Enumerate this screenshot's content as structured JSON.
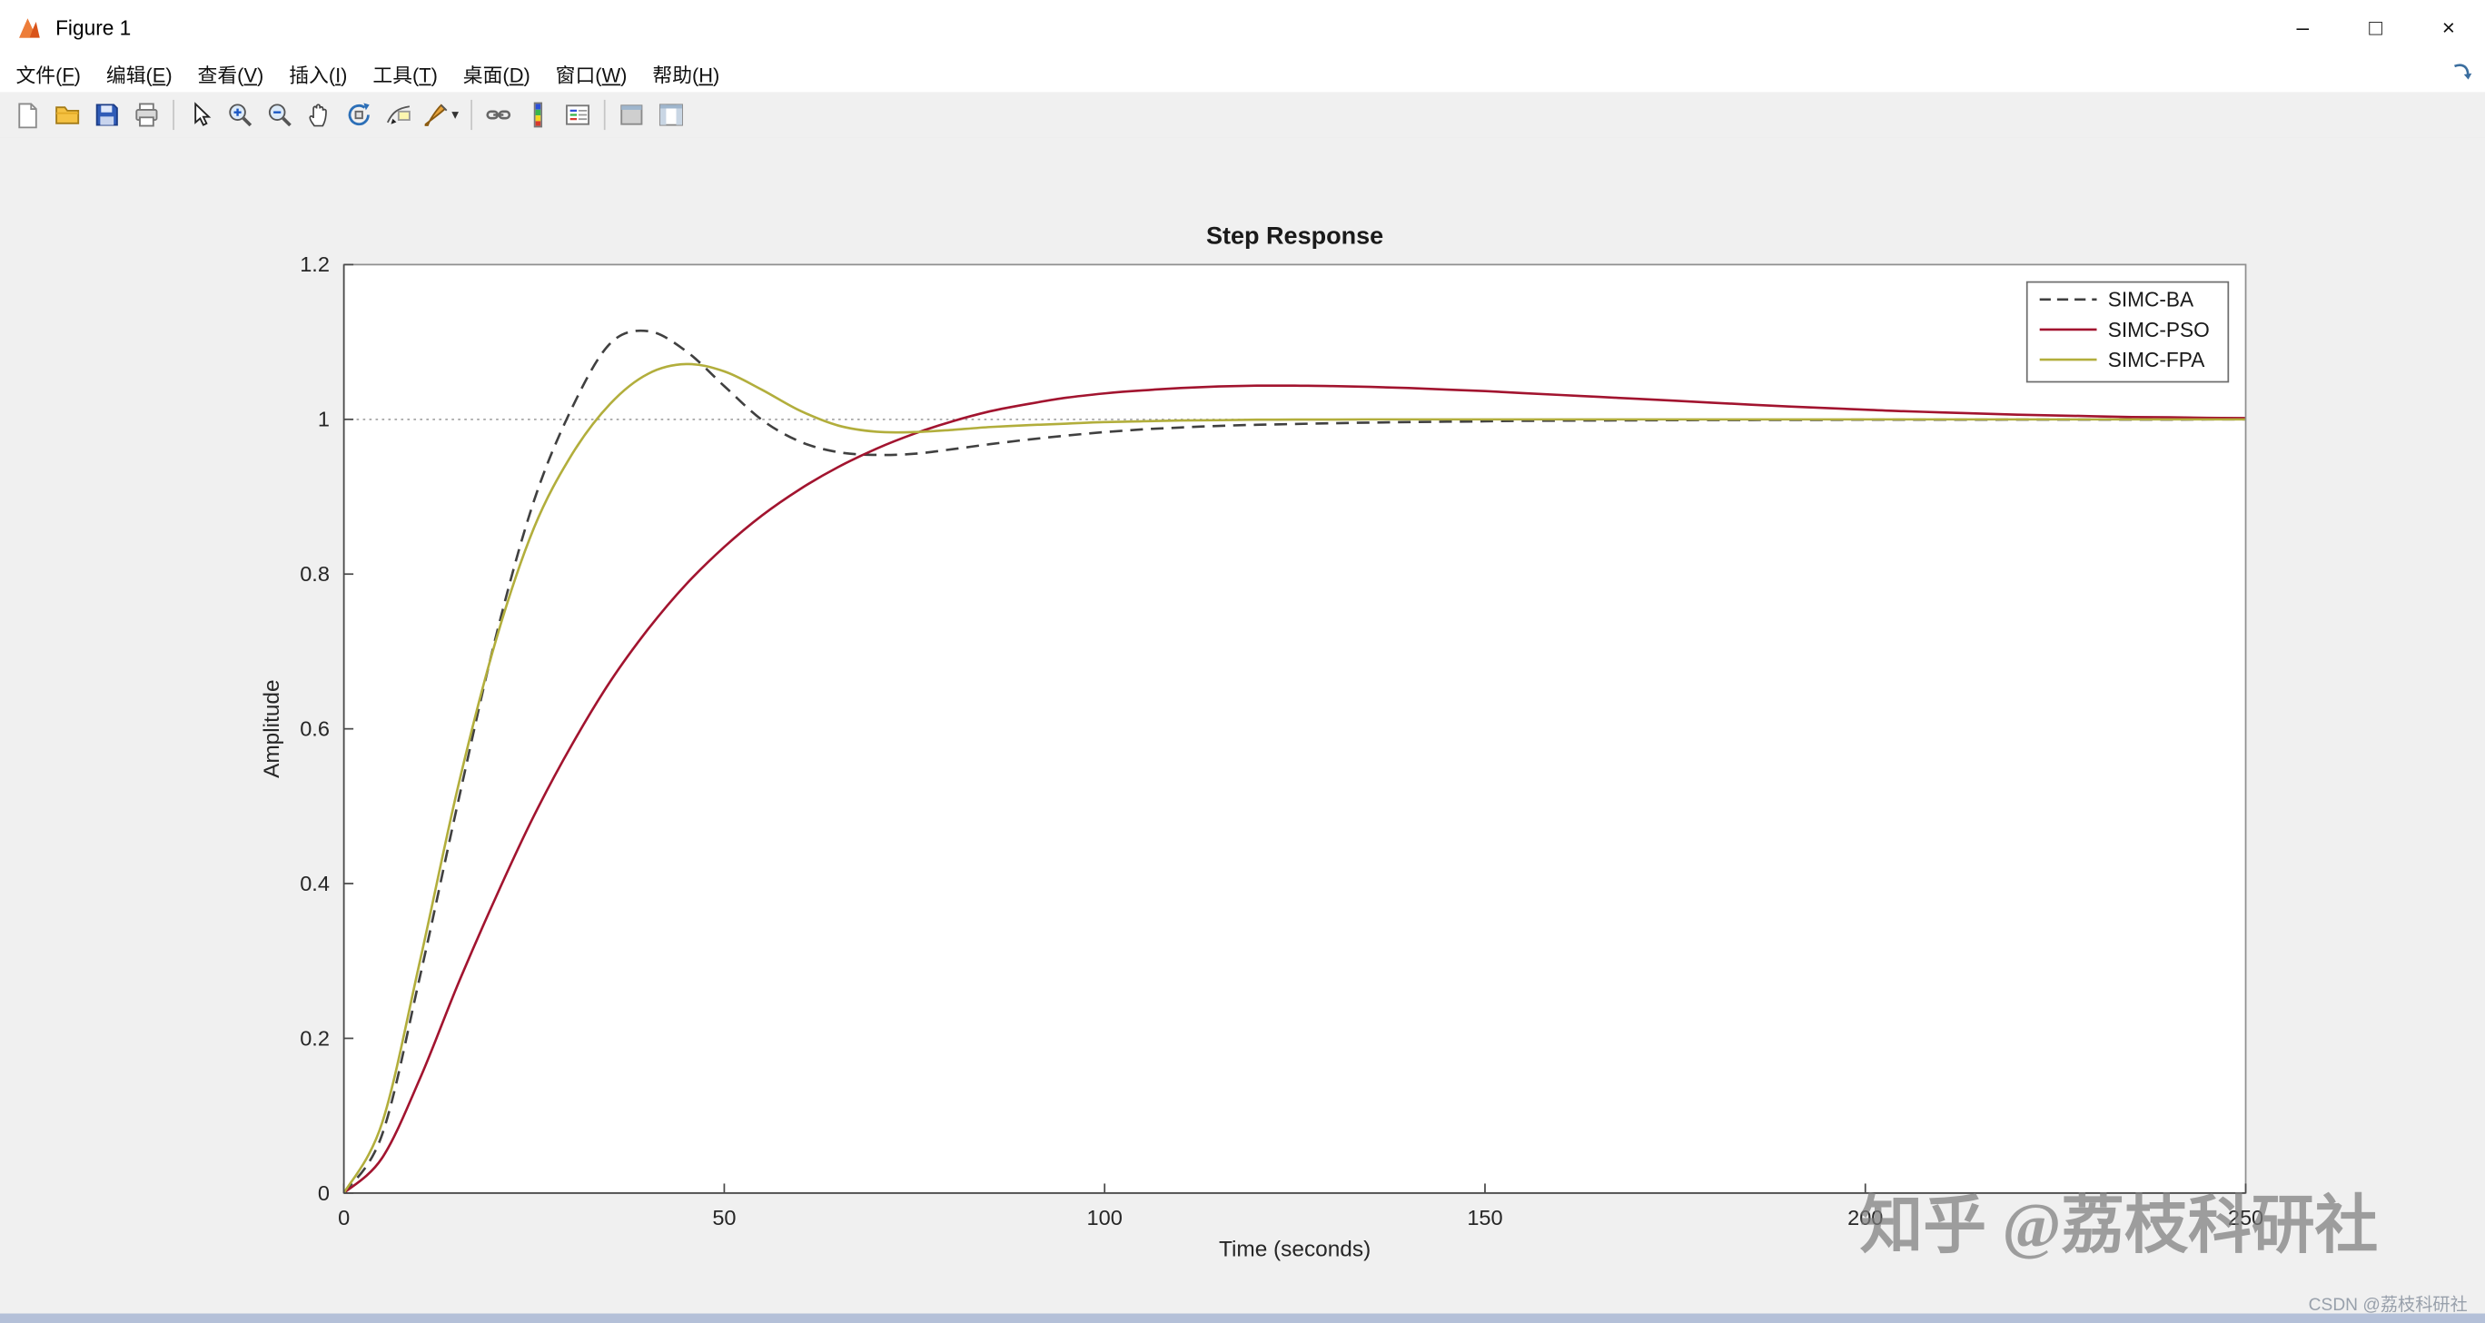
{
  "window": {
    "title": "Figure 1",
    "controls": {
      "minimize_glyph": "–",
      "maximize_glyph": "□",
      "close_glyph": "×"
    }
  },
  "menu": {
    "items": [
      {
        "name": "file",
        "text": "文件",
        "key": "F"
      },
      {
        "name": "edit",
        "text": "编辑",
        "key": "E"
      },
      {
        "name": "view",
        "text": "查看",
        "key": "V"
      },
      {
        "name": "insert",
        "text": "插入",
        "key": "I"
      },
      {
        "name": "tools",
        "text": "工具",
        "key": "T"
      },
      {
        "name": "desktop",
        "text": "桌面",
        "key": "D"
      },
      {
        "name": "window",
        "text": "窗口",
        "key": "W"
      },
      {
        "name": "help",
        "text": "帮助",
        "key": "H"
      }
    ]
  },
  "toolbar": {
    "icons": [
      "new-figure",
      "open-file",
      "save-figure",
      "print-figure",
      "edit-plot",
      "zoom-in",
      "zoom-out",
      "pan",
      "rotate-3d",
      "data-cursor",
      "brush",
      "link-plot",
      "insert-colorbar",
      "insert-legend",
      "hide-plot-tools",
      "show-plot-tools"
    ]
  },
  "chart_data": {
    "type": "line",
    "title": "Step Response",
    "xlabel": "Time (seconds)",
    "ylabel": "Amplitude",
    "xlim": [
      0,
      250
    ],
    "ylim": [
      0,
      1.2
    ],
    "xticks": [
      0,
      50,
      100,
      150,
      200,
      250
    ],
    "xtick_labels": [
      "0",
      "50",
      "100",
      "150",
      "200",
      "250"
    ],
    "yticks": [
      0,
      0.2,
      0.4,
      0.6,
      0.8,
      1,
      1.2
    ],
    "ytick_labels": [
      "0",
      "0.2",
      "0.4",
      "0.6",
      "0.8",
      "1",
      "1.2"
    ],
    "grid": false,
    "reference_line_y": 1,
    "legend_position": "northeast",
    "x": [
      0,
      5,
      10,
      15,
      20,
      25,
      30,
      35,
      40,
      45,
      50,
      55,
      60,
      65,
      70,
      75,
      80,
      85,
      90,
      95,
      100,
      105,
      110,
      115,
      120,
      125,
      130,
      135,
      140,
      145,
      150,
      155,
      160,
      165,
      170,
      175,
      180,
      185,
      190,
      195,
      200,
      205,
      210,
      215,
      220,
      225,
      230,
      235,
      240,
      245,
      250
    ],
    "series": [
      {
        "name": "SIMC-BA",
        "color": "#404040",
        "line_style": "dashed",
        "values": [
          0,
          0.075,
          0.28,
          0.505,
          0.72,
          0.895,
          1.015,
          1.098,
          1.114,
          1.088,
          1.043,
          0.999,
          0.971,
          0.9575,
          0.954,
          0.9555,
          0.9615,
          0.968,
          0.974,
          0.979,
          0.9835,
          0.987,
          0.9895,
          0.9915,
          0.993,
          0.994,
          0.995,
          0.9958,
          0.9965,
          0.997,
          0.9975,
          0.998,
          0.9983,
          0.9986,
          0.9988,
          0.999,
          0.9991,
          0.9992,
          0.9993,
          0.9994,
          0.9995,
          0.9995,
          0.9996,
          0.9996,
          0.9997,
          0.9997,
          0.9998,
          0.9998,
          0.9998,
          0.9999,
          0.9999
        ]
      },
      {
        "name": "SIMC-PSO",
        "color": "#a2142f",
        "line_style": "solid",
        "values": [
          0,
          0.045,
          0.148,
          0.27,
          0.383,
          0.488,
          0.58,
          0.661,
          0.729,
          0.787,
          0.835,
          0.876,
          0.91,
          0.9385,
          0.962,
          0.9815,
          0.9975,
          1.0105,
          1.02,
          1.028,
          1.0335,
          1.0375,
          1.0405,
          1.0425,
          1.0435,
          1.0435,
          1.043,
          1.042,
          1.0405,
          1.0385,
          1.0365,
          1.034,
          1.0315,
          1.029,
          1.0265,
          1.024,
          1.0215,
          1.019,
          1.0165,
          1.0145,
          1.0125,
          1.0105,
          1.009,
          1.0075,
          1.006,
          1.005,
          1.004,
          1.003,
          1.0025,
          1.002,
          1.0015
        ]
      },
      {
        "name": "SIMC-FPA",
        "color": "#b2ae3c",
        "line_style": "solid",
        "values": [
          0,
          0.09,
          0.3,
          0.525,
          0.715,
          0.86,
          0.955,
          1.02,
          1.059,
          1.0715,
          1.062,
          1.038,
          1.011,
          0.992,
          0.984,
          0.9835,
          0.9865,
          0.99,
          0.9925,
          0.9945,
          0.9965,
          0.9975,
          0.9985,
          0.999,
          0.9995,
          0.9997,
          0.9998,
          0.9999,
          1,
          1,
          1,
          1,
          1,
          1,
          1,
          1,
          1,
          1,
          1,
          1,
          1,
          1,
          1,
          1,
          1,
          1,
          1,
          1,
          1,
          1,
          1
        ]
      }
    ]
  },
  "watermarks": {
    "zhihu": "知乎 @荔枝科研社",
    "csdn": "CSDN @荔枝科研社"
  }
}
